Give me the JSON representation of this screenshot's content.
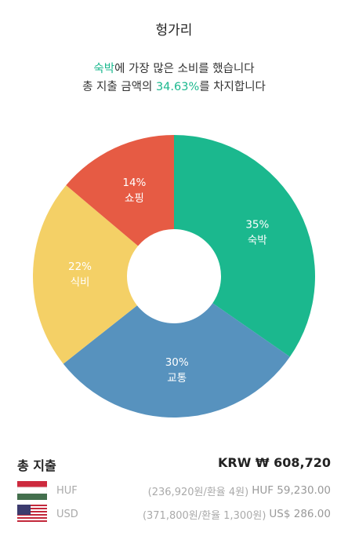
{
  "header": {
    "title": "헝가리"
  },
  "summary": {
    "line1_highlight": "숙박",
    "line1_rest": "에 가장 많은 소비를 했습니다",
    "line2_prefix": "총 지출 금액의 ",
    "line2_highlight": "34.63%",
    "line2_suffix": "를 차지합니다"
  },
  "chart_data": {
    "type": "donut",
    "categories": [
      "숙박",
      "교통",
      "식비",
      "쇼핑"
    ],
    "values": [
      35,
      30,
      22,
      14
    ],
    "value_labels": [
      "35%",
      "30%",
      "22%",
      "14%"
    ],
    "colors": [
      "#1bb88e",
      "#5792be",
      "#f4d066",
      "#e65b44"
    ]
  },
  "total": {
    "label": "총 지출",
    "amount": "KRW ₩ 608,720"
  },
  "currencies": [
    {
      "code": "HUF",
      "detail": "(236,920원/환율 4원)",
      "amount": "HUF 59,230.00"
    },
    {
      "code": "USD",
      "detail": "(371,800원/환율 1,300원)",
      "amount": "US$ 286.00"
    }
  ]
}
